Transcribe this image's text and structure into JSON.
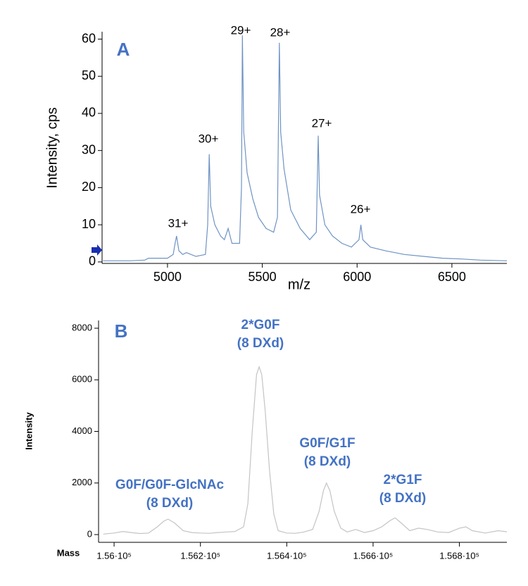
{
  "chart_data": [
    {
      "type": "line",
      "panel_label": "A",
      "x_label": "m/z",
      "y_label": "Intensity, cps",
      "color": "#6f93c4",
      "x": [
        4660,
        4800,
        4880,
        4900,
        5000,
        5030,
        5040,
        5048,
        5060,
        5080,
        5100,
        5150,
        5200,
        5212,
        5220,
        5228,
        5250,
        5280,
        5300,
        5320,
        5340,
        5380,
        5390,
        5395,
        5402,
        5420,
        5450,
        5480,
        5520,
        5560,
        5580,
        5590,
        5597,
        5615,
        5650,
        5700,
        5750,
        5785,
        5795,
        5802,
        5830,
        5870,
        5920,
        5970,
        6010,
        6020,
        6030,
        6070,
        6150,
        6250,
        6350,
        6450,
        6550,
        6650,
        6790
      ],
      "values": [
        0.3,
        0.3,
        0.5,
        1,
        1,
        2,
        5,
        7,
        3,
        2,
        2.5,
        1.5,
        2,
        10,
        29,
        15,
        10,
        7,
        6,
        9,
        5,
        5,
        20,
        61,
        35,
        24,
        17,
        12,
        9,
        8,
        12,
        59,
        35,
        25,
        14,
        9,
        6,
        8,
        34,
        18,
        10,
        7,
        5,
        4,
        6,
        10,
        6,
        4,
        3,
        2,
        1.5,
        1,
        0.8,
        0.5,
        0.3
      ],
      "annotations": [
        "31+",
        "30+",
        "29+",
        "28+",
        "27+",
        "26+"
      ],
      "xlim": [
        4655,
        6790
      ],
      "ylim": [
        -0.4,
        62
      ],
      "xticks": [
        5000,
        5500,
        6000,
        6500
      ],
      "yticks": [
        0,
        10,
        20,
        30,
        40,
        50,
        60
      ]
    },
    {
      "type": "line",
      "panel_label": "B",
      "x_label": "Mass",
      "y_label": "Intensity",
      "color": "#c4c4c4",
      "x": [
        155975,
        156000,
        156020,
        156040,
        156060,
        156080,
        156100,
        156115,
        156125,
        156140,
        156160,
        156180,
        156200,
        156220,
        156240,
        156260,
        156280,
        156300,
        156310,
        156320,
        156330,
        156336,
        156342,
        156350,
        156360,
        156370,
        156380,
        156400,
        156420,
        156440,
        156460,
        156475,
        156485,
        156492,
        156500,
        156510,
        156525,
        156540,
        156560,
        156580,
        156600,
        156620,
        156640,
        156651,
        156665,
        156685,
        156705,
        156725,
        156750,
        156775,
        156800,
        156815,
        156830,
        156860,
        156890,
        156910
      ],
      "values": [
        20,
        60,
        120,
        80,
        40,
        60,
        300,
        520,
        600,
        450,
        150,
        80,
        60,
        50,
        80,
        100,
        120,
        300,
        1200,
        4000,
        6200,
        6500,
        6200,
        4800,
        2500,
        800,
        150,
        60,
        50,
        100,
        200,
        900,
        1700,
        2000,
        1700,
        900,
        250,
        100,
        200,
        80,
        150,
        300,
        550,
        650,
        450,
        150,
        250,
        200,
        100,
        80,
        250,
        300,
        150,
        60,
        150,
        110
      ],
      "annotations": [
        [
          "G0F/G0F-GlcNAc",
          "(8 DXd)"
        ],
        [
          "2*G0F",
          "(8 DXd)"
        ],
        [
          "G0F/G1F",
          "(8 DXd)"
        ],
        [
          "2*G1F",
          "(8 DXd)"
        ]
      ],
      "xlim": [
        155964,
        156910
      ],
      "ylim": [
        -300,
        8300
      ],
      "xticks": [
        {
          "value": 156000,
          "label": "1.56·10⁵"
        },
        {
          "value": 156200,
          "label": "1.562·10⁵"
        },
        {
          "value": 156400,
          "label": "1.564·10⁵"
        },
        {
          "value": 156600,
          "label": "1.566·10⁵"
        },
        {
          "value": 156800,
          "label": "1.568·10⁵"
        }
      ],
      "yticks": [
        0,
        2000,
        4000,
        6000,
        8000
      ]
    }
  ]
}
